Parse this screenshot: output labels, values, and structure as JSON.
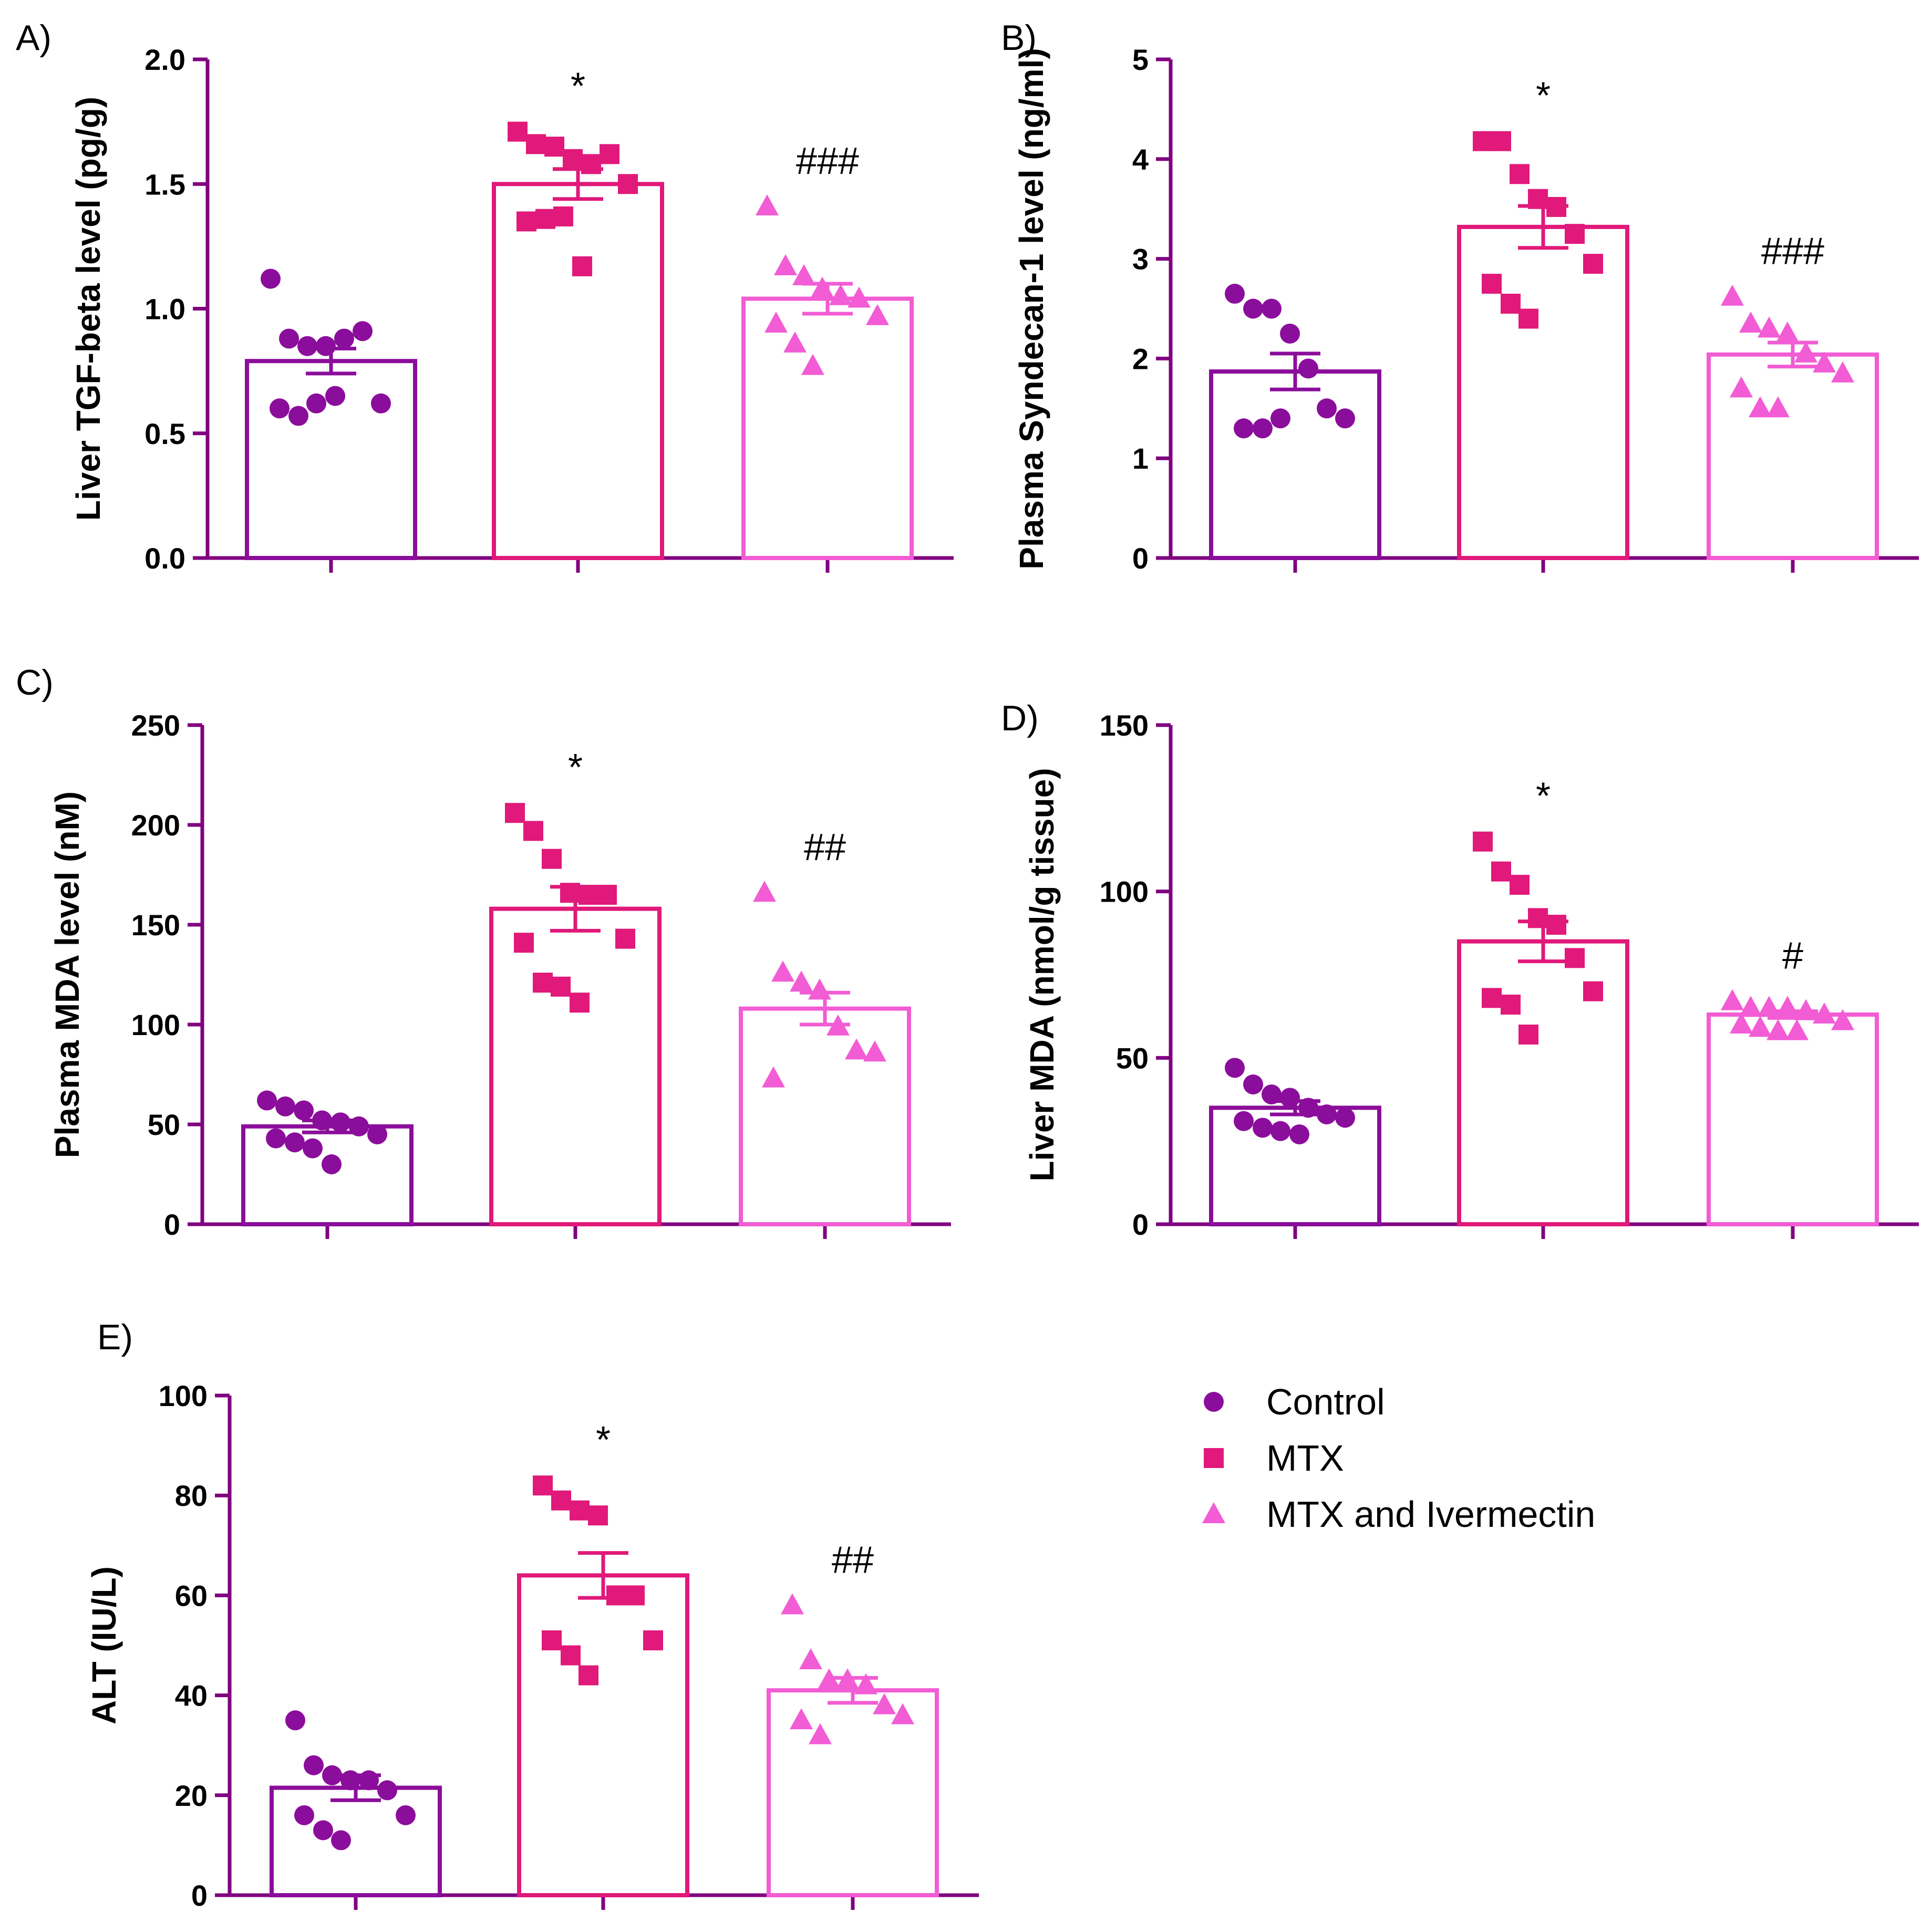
{
  "groups": [
    "Control",
    "MTX",
    "MTX and Ivermectin"
  ],
  "colors": {
    "axis": "#800080",
    "Control": "#8B0D9B",
    "MTX": "#E0197A",
    "MTX and Ivermectin": "#F25CD4"
  },
  "legend": [
    {
      "label": "Control",
      "marker": "circle"
    },
    {
      "label": "MTX",
      "marker": "square"
    },
    {
      "label": "MTX and Ivermectin",
      "marker": "triangle"
    }
  ],
  "chart_data": [
    {
      "panel": "A)",
      "type": "bar",
      "ylabel": "Liver  TGF-beta level (pg/g)",
      "ylim": [
        0,
        2.0
      ],
      "ticks": [
        "0.0",
        "0.5",
        "1.0",
        "1.5",
        "2.0"
      ],
      "tick_values": [
        0,
        0.5,
        1.0,
        1.5,
        2.0
      ],
      "series": [
        {
          "name": "Control",
          "mean": 0.79,
          "sem": 0.05,
          "annotation": "",
          "points": [
            1.12,
            0.88,
            0.85,
            0.85,
            0.88,
            0.91,
            0.62,
            0.6,
            0.57,
            0.62,
            0.65
          ]
        },
        {
          "name": "MTX",
          "mean": 1.5,
          "sem": 0.06,
          "annotation": "*",
          "points": [
            1.71,
            1.66,
            1.65,
            1.6,
            1.58,
            1.62,
            1.5,
            1.35,
            1.36,
            1.37,
            1.17
          ]
        },
        {
          "name": "MTX and Ivermectin",
          "mean": 1.04,
          "sem": 0.06,
          "annotation": "###",
          "points": [
            1.41,
            1.17,
            1.13,
            1.08,
            1.05,
            1.04,
            0.97,
            0.94,
            0.86,
            0.77
          ]
        }
      ]
    },
    {
      "panel": "B)",
      "type": "bar",
      "ylabel": "Plasma  Syndecan-1 level (ng/ml)",
      "ylim": [
        0,
        5
      ],
      "ticks": [
        "0",
        "1",
        "2",
        "3",
        "4",
        "5"
      ],
      "tick_values": [
        0,
        1,
        2,
        3,
        4,
        5
      ],
      "series": [
        {
          "name": "Control",
          "mean": 1.87,
          "sem": 0.18,
          "annotation": "",
          "points": [
            2.65,
            2.5,
            2.5,
            2.25,
            1.9,
            1.5,
            1.4,
            1.3,
            1.3,
            1.4
          ]
        },
        {
          "name": "MTX",
          "mean": 3.32,
          "sem": 0.21,
          "annotation": "*",
          "points": [
            4.18,
            4.18,
            3.85,
            3.6,
            3.52,
            3.25,
            2.95,
            2.75,
            2.55,
            2.4
          ]
        },
        {
          "name": "MTX and Ivermectin",
          "mean": 2.04,
          "sem": 0.12,
          "annotation": "###",
          "points": [
            2.62,
            2.35,
            2.3,
            2.25,
            2.05,
            1.95,
            1.85,
            1.7,
            1.5,
            1.5
          ]
        }
      ]
    },
    {
      "panel": "C)",
      "type": "bar",
      "ylabel": "Plasma MDA level (nM)",
      "ylim": [
        0,
        250
      ],
      "ticks": [
        "0",
        "50",
        "100",
        "150",
        "200",
        "250"
      ],
      "tick_values": [
        0,
        50,
        100,
        150,
        200,
        250
      ],
      "series": [
        {
          "name": "Control",
          "mean": 49,
          "sem": 3,
          "annotation": "",
          "points": [
            62,
            59,
            57,
            52,
            51,
            49,
            45,
            43,
            41,
            38,
            30
          ]
        },
        {
          "name": "MTX",
          "mean": 158,
          "sem": 11,
          "annotation": "*",
          "points": [
            206,
            197,
            183,
            166,
            165,
            165,
            143,
            141,
            121,
            119,
            111
          ]
        },
        {
          "name": "MTX and Ivermectin",
          "mean": 108,
          "sem": 8,
          "annotation": "##",
          "points": [
            166,
            126,
            121,
            117,
            99,
            87,
            86,
            73
          ]
        }
      ]
    },
    {
      "panel": "D)",
      "type": "bar",
      "ylabel": "Liver MDA (nmol/g tissue)",
      "ylim": [
        0,
        150
      ],
      "ticks": [
        "0",
        "50",
        "100",
        "150"
      ],
      "tick_values": [
        0,
        50,
        100,
        150
      ],
      "series": [
        {
          "name": "Control",
          "mean": 35,
          "sem": 2,
          "annotation": "",
          "points": [
            47,
            42,
            39,
            38,
            35,
            33,
            32,
            31,
            29,
            28,
            27
          ]
        },
        {
          "name": "MTX",
          "mean": 85,
          "sem": 6,
          "annotation": "*",
          "points": [
            115,
            106,
            102,
            92,
            90,
            80,
            70,
            68,
            66,
            57
          ]
        },
        {
          "name": "MTX and Ivermectin",
          "mean": 63,
          "sem": 1,
          "annotation": "#",
          "points": [
            67,
            65,
            65,
            65,
            64,
            63,
            61,
            60,
            59,
            58,
            58
          ]
        }
      ]
    },
    {
      "panel": "E)",
      "type": "bar",
      "ylabel": "ALT (IU/L)",
      "ylim": [
        0,
        100
      ],
      "ticks": [
        "0",
        "20",
        "40",
        "60",
        "80",
        "100"
      ],
      "tick_values": [
        0,
        20,
        40,
        60,
        80,
        100
      ],
      "series": [
        {
          "name": "Control",
          "mean": 21.5,
          "sem": 2.5,
          "annotation": "",
          "points": [
            35,
            26,
            24,
            23,
            23,
            21,
            16,
            16,
            13,
            11
          ]
        },
        {
          "name": "MTX",
          "mean": 64,
          "sem": 4.5,
          "annotation": "*",
          "points": [
            82,
            79,
            77,
            76,
            60,
            60,
            51,
            51,
            48,
            44
          ]
        },
        {
          "name": "MTX and Ivermectin",
          "mean": 41,
          "sem": 2.5,
          "annotation": "##",
          "points": [
            58,
            47,
            43,
            43,
            42,
            38,
            36,
            35,
            32
          ]
        }
      ]
    }
  ]
}
